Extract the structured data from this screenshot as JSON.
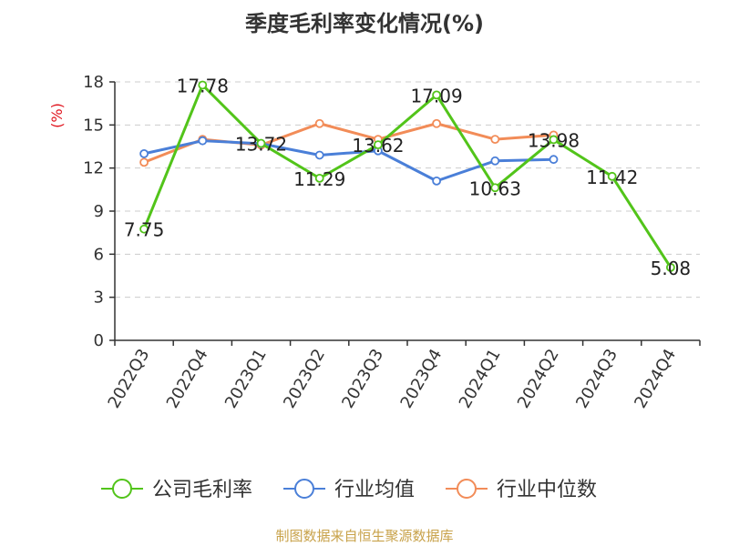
{
  "chart_data": {
    "type": "line",
    "title": "季度毛利率变化情况(%)",
    "ylabel": "(%)",
    "xlabel": "",
    "ylim": [
      0,
      18
    ],
    "yticks": [
      0,
      3,
      6,
      9,
      12,
      15,
      18
    ],
    "grid": true,
    "legend_position": "bottom",
    "categories": [
      "2022Q3",
      "2022Q4",
      "2023Q1",
      "2023Q2",
      "2023Q3",
      "2023Q4",
      "2024Q1",
      "2024Q2",
      "2024Q3",
      "2024Q4"
    ],
    "series": [
      {
        "name": "公司毛利率",
        "color": "#52c41a",
        "values": [
          7.75,
          17.78,
          13.72,
          11.29,
          13.62,
          17.09,
          10.63,
          13.98,
          11.42,
          5.08
        ],
        "labels": [
          "7.75",
          "17.78",
          "13.72",
          "11.29",
          "13.62",
          "17.09",
          "10.63",
          "13.98",
          "11.42",
          "5.08"
        ]
      },
      {
        "name": "行业均值",
        "color": "#4a7fd8",
        "values": [
          13.0,
          13.9,
          13.7,
          12.9,
          13.2,
          11.1,
          12.5,
          12.6,
          null,
          null
        ]
      },
      {
        "name": "行业中位数",
        "color": "#f28c58",
        "values": [
          12.4,
          14.0,
          13.6,
          15.1,
          14.0,
          15.1,
          14.0,
          14.3,
          null,
          null
        ]
      }
    ]
  },
  "source": "制图数据来自恒生聚源数据库"
}
